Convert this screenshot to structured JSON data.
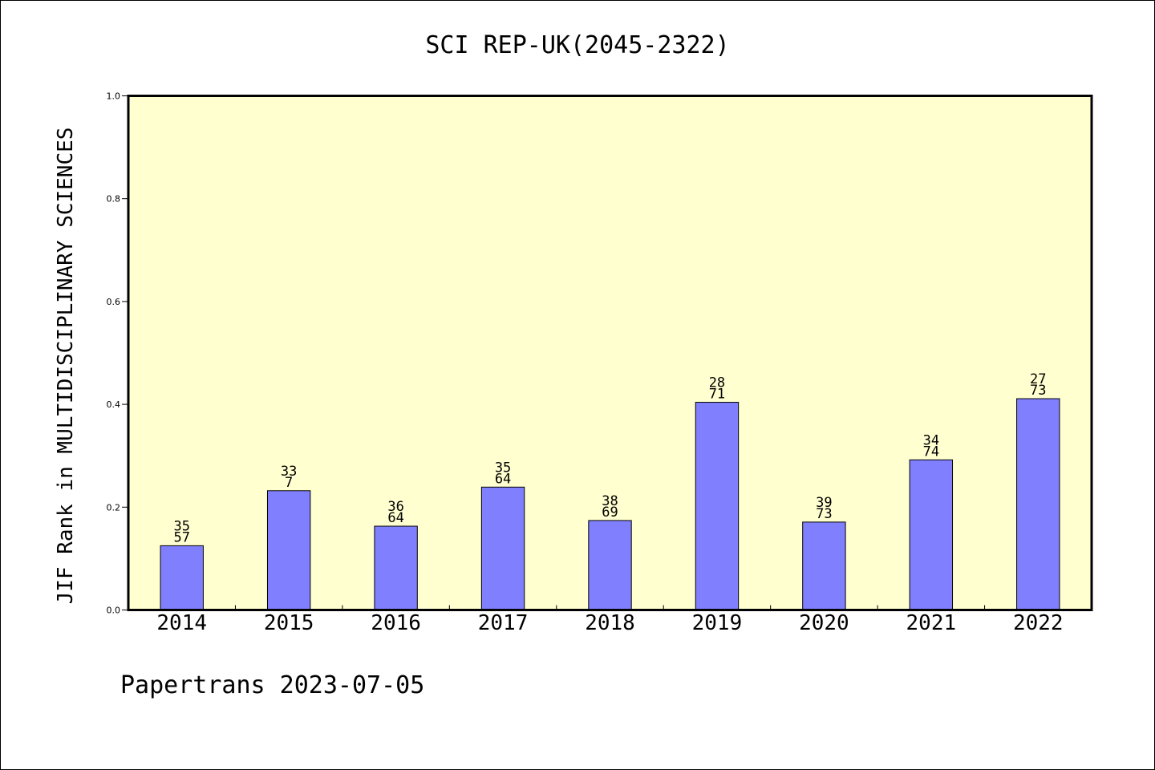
{
  "chart_data": {
    "type": "bar",
    "title": "SCI REP-UK(2045-2322)",
    "xlabel": "",
    "ylabel": "JIF Rank in MULTIDISCIPLINARY SCIENCES",
    "ylim": [
      0,
      1
    ],
    "yticks": [
      "0.0",
      "0.2",
      "0.4",
      "0.6",
      "0.8",
      "1.0"
    ],
    "grid": false,
    "categories": [
      "2014",
      "2015",
      "2016",
      "2017",
      "2018",
      "2019",
      "2020",
      "2021",
      "2022"
    ],
    "values": [
      0.125,
      0.232,
      0.163,
      0.239,
      0.174,
      0.404,
      0.171,
      0.292,
      0.411
    ],
    "bar_labels": [
      [
        "35",
        "57"
      ],
      [
        "33",
        "7"
      ],
      [
        "36",
        "64"
      ],
      [
        "35",
        "64"
      ],
      [
        "38",
        "69"
      ],
      [
        "28",
        "71"
      ],
      [
        "39",
        "73"
      ],
      [
        "34",
        "74"
      ],
      [
        "27",
        "73"
      ]
    ],
    "footer": "Papertrans 2023-07-05",
    "colors": {
      "plot_background": "#ffffd0",
      "bar_fill": "#8080ff",
      "bar_stroke": "#000000"
    }
  }
}
